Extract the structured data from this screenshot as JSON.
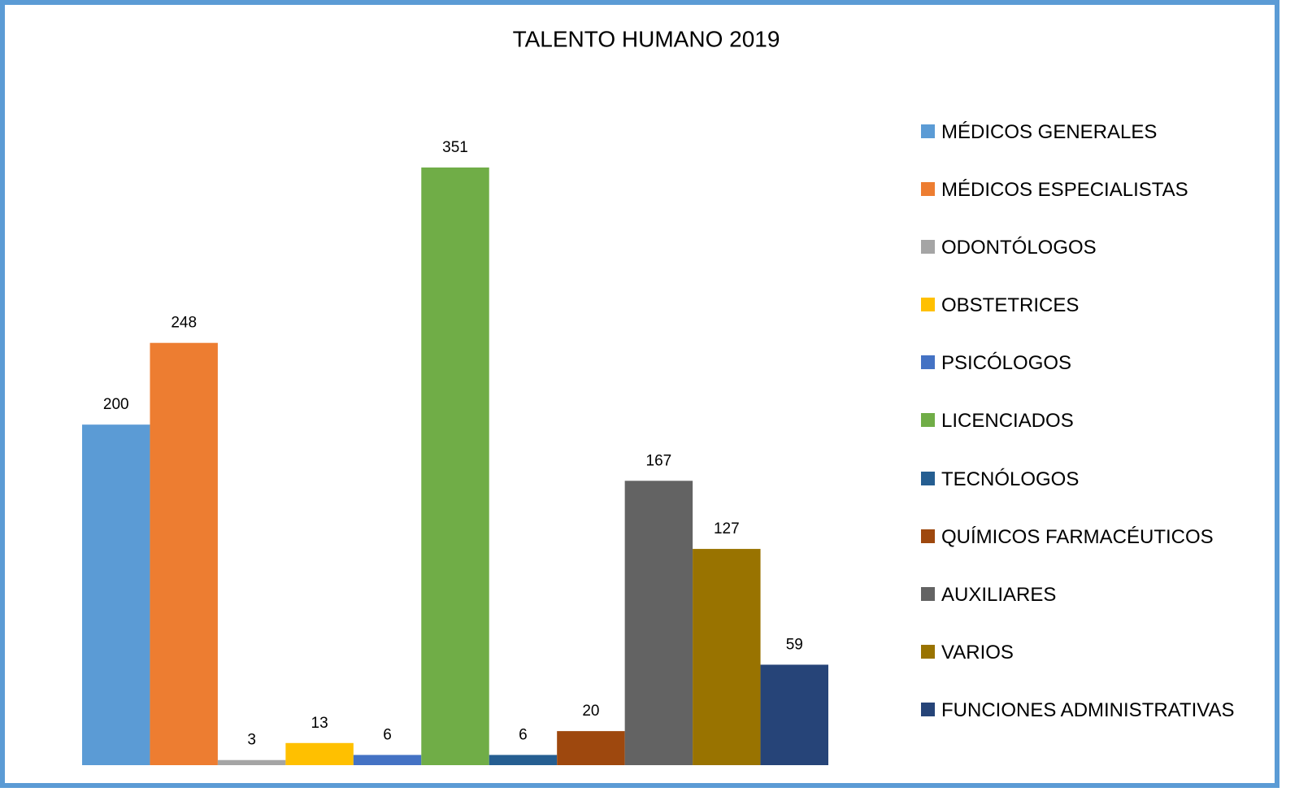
{
  "chart_data": {
    "type": "bar",
    "title": "TALENTO HUMANO 2019",
    "ylim": [
      0,
      400
    ],
    "legend": "right",
    "series": [
      {
        "name": "MÉDICOS GENERALES",
        "color": "#5b9bd5",
        "values": [
          200
        ]
      },
      {
        "name": "MÉDICOS ESPECIALISTAS",
        "color": "#ed7d31",
        "values": [
          248
        ]
      },
      {
        "name": "ODONTÓLOGOS",
        "color": "#a5a5a5",
        "values": [
          3
        ]
      },
      {
        "name": "OBSTETRICES",
        "color": "#ffc000",
        "values": [
          13
        ]
      },
      {
        "name": "PSICÓLOGOS",
        "color": "#4472c4",
        "values": [
          6
        ]
      },
      {
        "name": "LICENCIADOS",
        "color": "#70ad47",
        "values": [
          351
        ]
      },
      {
        "name": "TECNÓLOGOS",
        "color": "#255e91",
        "values": [
          6
        ]
      },
      {
        "name": "QUÍMICOS FARMACÉUTICOS",
        "color": "#9e480e",
        "values": [
          20
        ]
      },
      {
        "name": "AUXILIARES",
        "color": "#636363",
        "values": [
          167
        ]
      },
      {
        "name": "VARIOS",
        "color": "#997300",
        "values": [
          127
        ]
      },
      {
        "name": "FUNCIONES ADMINISTRATIVAS",
        "color": "#264478",
        "values": [
          59
        ]
      }
    ]
  }
}
